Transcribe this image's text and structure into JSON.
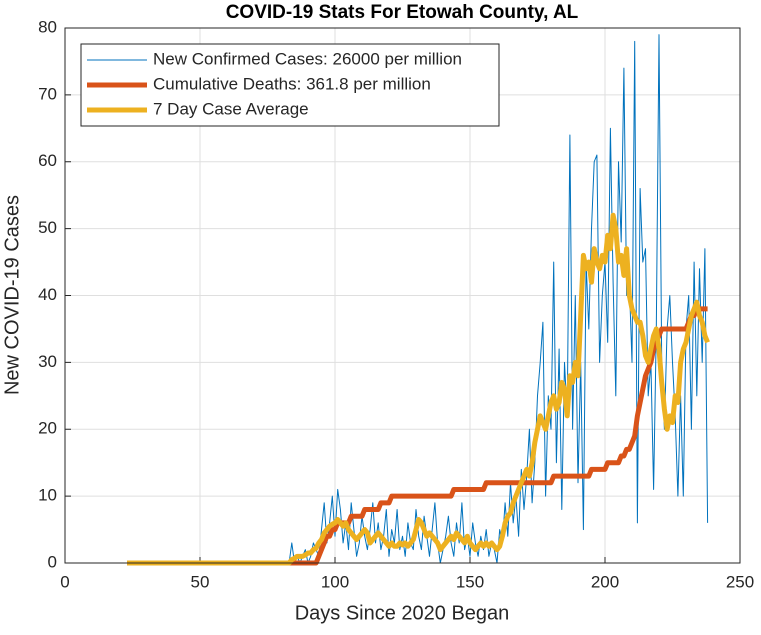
{
  "chart_data": {
    "type": "line",
    "title": "COVID-19 Stats For Etowah County, AL",
    "x_label": "Days Since 2020 Began",
    "y_label": "New COVID-19 Cases",
    "xlim": [
      0,
      250
    ],
    "xticks": [
      0,
      50,
      100,
      150,
      200,
      250
    ],
    "ylim": [
      0,
      80
    ],
    "yticks": [
      0,
      10,
      20,
      30,
      40,
      50,
      60,
      70,
      80
    ],
    "grid": true,
    "legend": "upper left",
    "x": [
      23,
      24,
      25,
      26,
      27,
      28,
      29,
      30,
      31,
      32,
      33,
      34,
      35,
      36,
      37,
      38,
      39,
      40,
      41,
      42,
      43,
      44,
      45,
      46,
      47,
      48,
      49,
      50,
      51,
      52,
      53,
      54,
      55,
      56,
      57,
      58,
      59,
      60,
      61,
      62,
      63,
      64,
      65,
      66,
      67,
      68,
      69,
      70,
      71,
      72,
      73,
      74,
      75,
      76,
      77,
      78,
      79,
      80,
      81,
      82,
      83,
      84,
      85,
      86,
      87,
      88,
      89,
      90,
      91,
      92,
      93,
      94,
      95,
      96,
      97,
      98,
      99,
      100,
      101,
      102,
      103,
      104,
      105,
      106,
      107,
      108,
      109,
      110,
      111,
      112,
      113,
      114,
      115,
      116,
      117,
      118,
      119,
      120,
      121,
      122,
      123,
      124,
      125,
      126,
      127,
      128,
      129,
      130,
      131,
      132,
      133,
      134,
      135,
      136,
      137,
      138,
      139,
      140,
      141,
      142,
      143,
      144,
      145,
      146,
      147,
      148,
      149,
      150,
      151,
      152,
      153,
      154,
      155,
      156,
      157,
      158,
      159,
      160,
      161,
      162,
      163,
      164,
      165,
      166,
      167,
      168,
      169,
      170,
      171,
      172,
      173,
      174,
      175,
      176,
      177,
      178,
      179,
      180,
      181,
      182,
      183,
      184,
      185,
      186,
      187,
      188,
      189,
      190,
      191,
      192,
      193,
      194,
      195,
      196,
      197,
      198,
      199,
      200,
      201,
      202,
      203,
      204,
      205,
      206,
      207,
      208,
      209,
      210,
      211,
      212,
      213,
      214,
      215,
      216,
      217,
      218,
      219,
      220,
      221,
      222,
      223,
      224,
      225,
      226,
      227,
      228,
      229,
      230,
      231,
      232,
      233,
      234,
      235,
      236,
      237,
      238
    ],
    "series": [
      {
        "name": "New Confirmed Cases: 26000 per million",
        "color": "#0072BD",
        "width": 1,
        "values": [
          0,
          0,
          0,
          0,
          0,
          0,
          0,
          0,
          0,
          0,
          0,
          0,
          0,
          0,
          0,
          0,
          0,
          0,
          0,
          0,
          0,
          0,
          0,
          0,
          0,
          0,
          0,
          0,
          0,
          0,
          0,
          0,
          0,
          0,
          0,
          0,
          0,
          0,
          0,
          0,
          0,
          0,
          0,
          0,
          0,
          0,
          0,
          0,
          0,
          0,
          0,
          0,
          0,
          0,
          0,
          0,
          0,
          0,
          0,
          0,
          0,
          3,
          0,
          1,
          0,
          1,
          2,
          0,
          1,
          3,
          2,
          1,
          5,
          9,
          3,
          6,
          10,
          4,
          11,
          8,
          3,
          6,
          2,
          9,
          5,
          1,
          3,
          7,
          4,
          2,
          5,
          9,
          3,
          6,
          2,
          4,
          8,
          1,
          5,
          3,
          8,
          2,
          4,
          1,
          6,
          3,
          2,
          8,
          4,
          2,
          7,
          4,
          1,
          5,
          9,
          3,
          0,
          2,
          4,
          7,
          3,
          1,
          6,
          3,
          9,
          2,
          4,
          1,
          6,
          3,
          1,
          4,
          2,
          5,
          1,
          3,
          2,
          0,
          5,
          3,
          9,
          4,
          12,
          6,
          10,
          4,
          14,
          8,
          13,
          20,
          9,
          15,
          25,
          30,
          36,
          10,
          25,
          20,
          45,
          15,
          32,
          8,
          30,
          22,
          64,
          20,
          40,
          12,
          30,
          5,
          45,
          35,
          50,
          60,
          61,
          30,
          40,
          45,
          33,
          65,
          42,
          25,
          60,
          48,
          74,
          40,
          42,
          30,
          78,
          6,
          56,
          45,
          47,
          25,
          30,
          11,
          35,
          79,
          30,
          20,
          35,
          40,
          30,
          22,
          10,
          25,
          10,
          35,
          40,
          20,
          45,
          25,
          44,
          30,
          47,
          6
        ]
      },
      {
        "name": "Cumulative Deaths: 361.8 per million",
        "color": "#D95319",
        "width": 5,
        "values": [
          0,
          0,
          0,
          0,
          0,
          0,
          0,
          0,
          0,
          0,
          0,
          0,
          0,
          0,
          0,
          0,
          0,
          0,
          0,
          0,
          0,
          0,
          0,
          0,
          0,
          0,
          0,
          0,
          0,
          0,
          0,
          0,
          0,
          0,
          0,
          0,
          0,
          0,
          0,
          0,
          0,
          0,
          0,
          0,
          0,
          0,
          0,
          0,
          0,
          0,
          0,
          0,
          0,
          0,
          0,
          0,
          0,
          0,
          0,
          0,
          0,
          0,
          0,
          0,
          0,
          0,
          0,
          0,
          0,
          0,
          0,
          1,
          2,
          3,
          4,
          4,
          5,
          5,
          6,
          6,
          6,
          6,
          6,
          7,
          7,
          7,
          7,
          7,
          8,
          8,
          8,
          8,
          8,
          8,
          9,
          9,
          9,
          9,
          10,
          10,
          10,
          10,
          10,
          10,
          10,
          10,
          10,
          10,
          10,
          10,
          10,
          10,
          10,
          10,
          10,
          10,
          10,
          10,
          10,
          10,
          10,
          11,
          11,
          11,
          11,
          11,
          11,
          11,
          11,
          11,
          11,
          11,
          11,
          12,
          12,
          12,
          12,
          12,
          12,
          12,
          12,
          12,
          12,
          12,
          12,
          12,
          12,
          12,
          12,
          12,
          12,
          12,
          12,
          12,
          12,
          12,
          12,
          12,
          13,
          13,
          13,
          13,
          13,
          13,
          13,
          13,
          13,
          13,
          13,
          13,
          13,
          13,
          14,
          14,
          14,
          14,
          14,
          14,
          15,
          15,
          15,
          15,
          15,
          16,
          16,
          17,
          17,
          18,
          19,
          22,
          24,
          26,
          28,
          29,
          30,
          32,
          33,
          34,
          35,
          35,
          35,
          35,
          35,
          35,
          35,
          35,
          35,
          35,
          36,
          37,
          37,
          38,
          38,
          38,
          38,
          38
        ]
      },
      {
        "name": "7 Day Case Average",
        "color": "#EDB120",
        "width": 5,
        "values": [
          0,
          0,
          0,
          0,
          0,
          0,
          0,
          0,
          0,
          0,
          0,
          0,
          0,
          0,
          0,
          0,
          0,
          0,
          0,
          0,
          0,
          0,
          0,
          0,
          0,
          0,
          0,
          0,
          0,
          0,
          0,
          0,
          0,
          0,
          0,
          0,
          0,
          0,
          0,
          0,
          0,
          0,
          0,
          0,
          0,
          0,
          0,
          0,
          0,
          0,
          0,
          0,
          0,
          0,
          0,
          0,
          0,
          0,
          0,
          0,
          0,
          0.5,
          0.7,
          1,
          1,
          1,
          1.2,
          1.5,
          1.5,
          2,
          2.2,
          3,
          3.5,
          4.5,
          5,
          5.5,
          5.8,
          6,
          6.5,
          6,
          5.5,
          6,
          5,
          4.5,
          4,
          3.5,
          4,
          4.5,
          5,
          4.5,
          3,
          3.5,
          4,
          4.5,
          4,
          3.5,
          3,
          2.5,
          3,
          2.5,
          2.5,
          3,
          2.7,
          3,
          2.5,
          3,
          3.5,
          5,
          6.5,
          6,
          5,
          4,
          4.5,
          4,
          3.5,
          3,
          2,
          2.5,
          3,
          3.5,
          4,
          3.5,
          4.5,
          4,
          3.5,
          3,
          4,
          3,
          2.5,
          2,
          2.5,
          3,
          2.5,
          3,
          2.5,
          3,
          2.5,
          2,
          2.5,
          4,
          6,
          7,
          7.5,
          9,
          10,
          11,
          12,
          13,
          14,
          13,
          15,
          18,
          20,
          22,
          21,
          20,
          22,
          24,
          25,
          23,
          24,
          27,
          26,
          22,
          28,
          27,
          30,
          28,
          37,
          46,
          44,
          45,
          42,
          47,
          45,
          44,
          46,
          45,
          49,
          47,
          52,
          50,
          45,
          46,
          43,
          47,
          40,
          38,
          37,
          36,
          36,
          34,
          31,
          30,
          32,
          34,
          35,
          32,
          27,
          23,
          20,
          22,
          21,
          25,
          24,
          30,
          32,
          33,
          35,
          37,
          38,
          39,
          37,
          36,
          34,
          33
        ]
      }
    ]
  }
}
